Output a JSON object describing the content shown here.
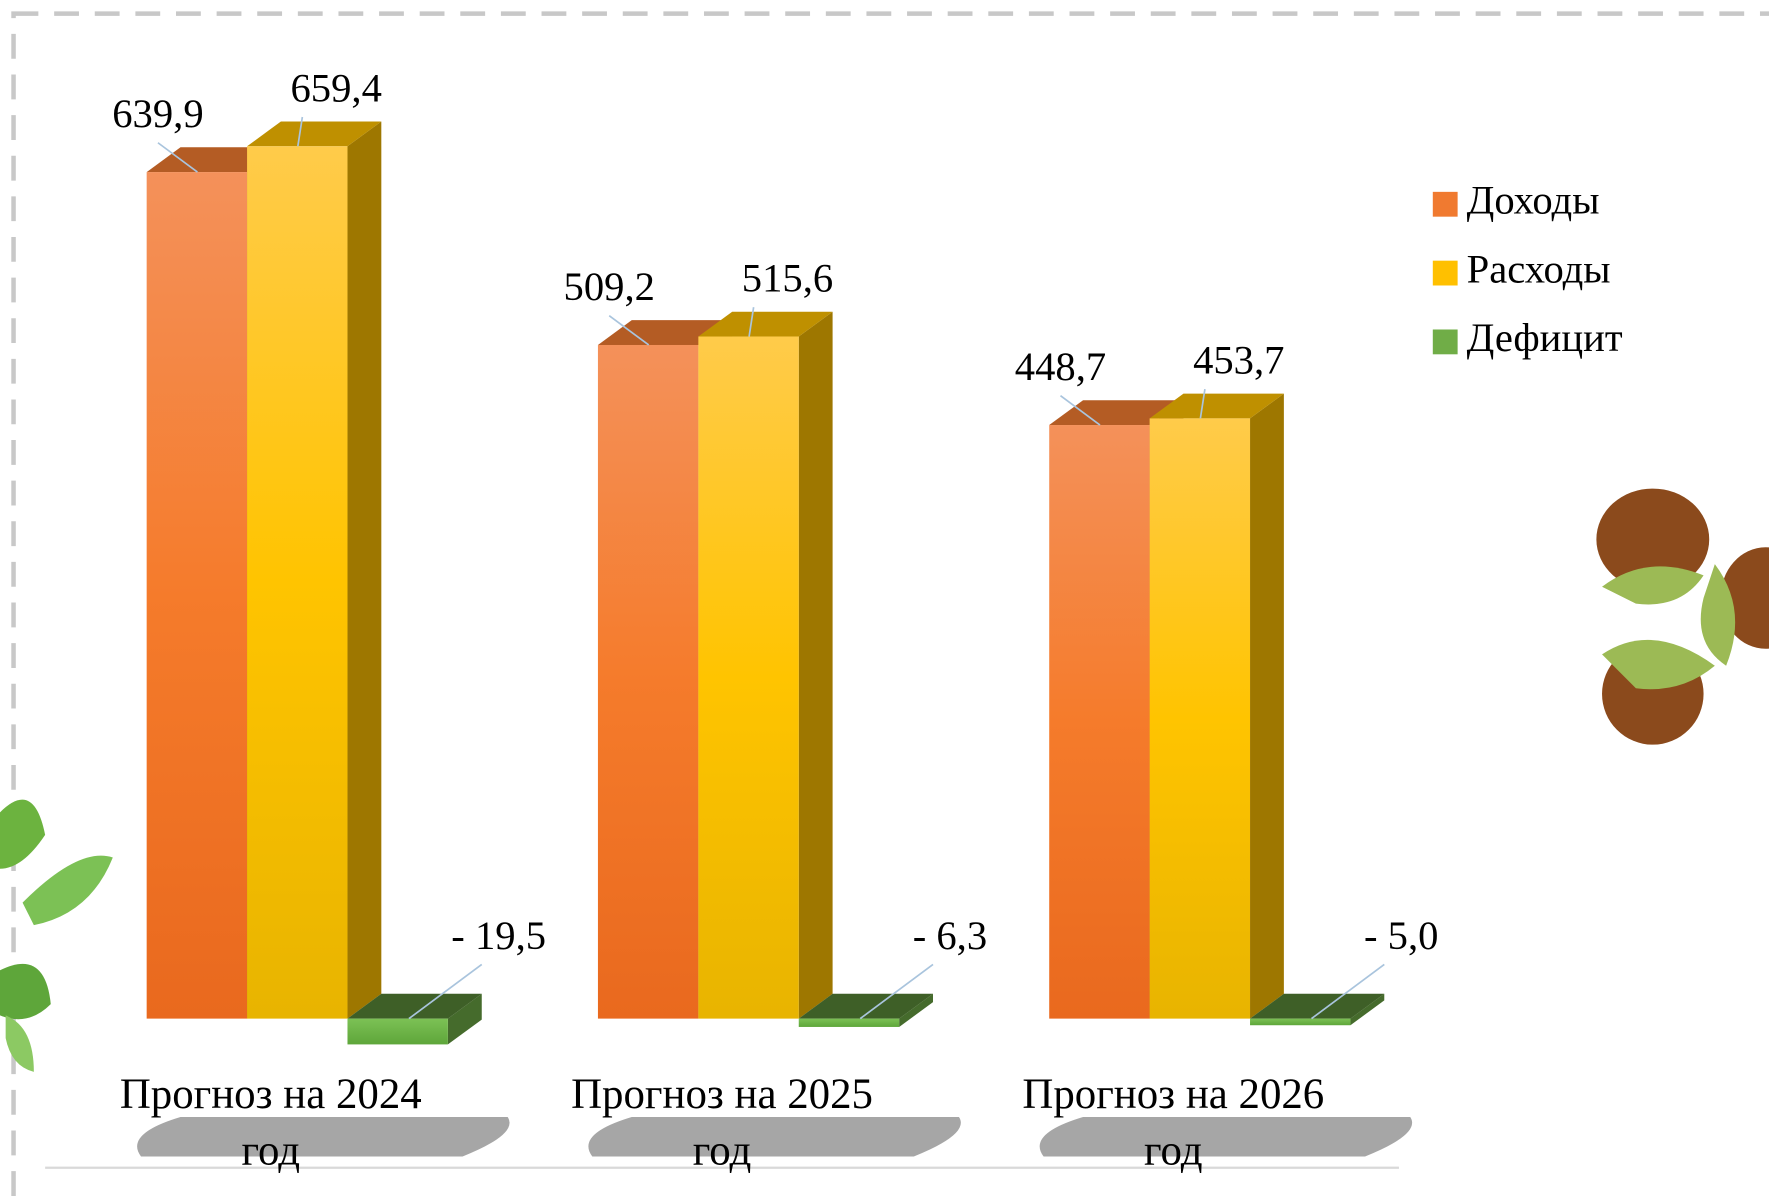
{
  "chart_data": {
    "type": "bar3d",
    "categories": [
      "Прогноз на 2024 год",
      "Прогноз на 2025 год",
      "Прогноз на 2026 год"
    ],
    "series": [
      {
        "name": "Доходы",
        "color": "#f07a30",
        "values": [
          639.9,
          509.2,
          448.7
        ],
        "value_labels": [
          "639,9",
          "509,2",
          "448,7"
        ]
      },
      {
        "name": "Расходы",
        "color": "#ffc000",
        "values": [
          659.4,
          515.6,
          453.7
        ],
        "value_labels": [
          "659,4",
          "515,6",
          "453,7"
        ]
      },
      {
        "name": "Дефицит",
        "color": "#70ad47",
        "values": [
          -19.5,
          -6.3,
          -5.0
        ],
        "value_labels": [
          "- 19,5",
          "- 6,3",
          "- 5,0"
        ]
      }
    ],
    "ylim": [
      -30,
      700
    ],
    "legend": "right"
  }
}
